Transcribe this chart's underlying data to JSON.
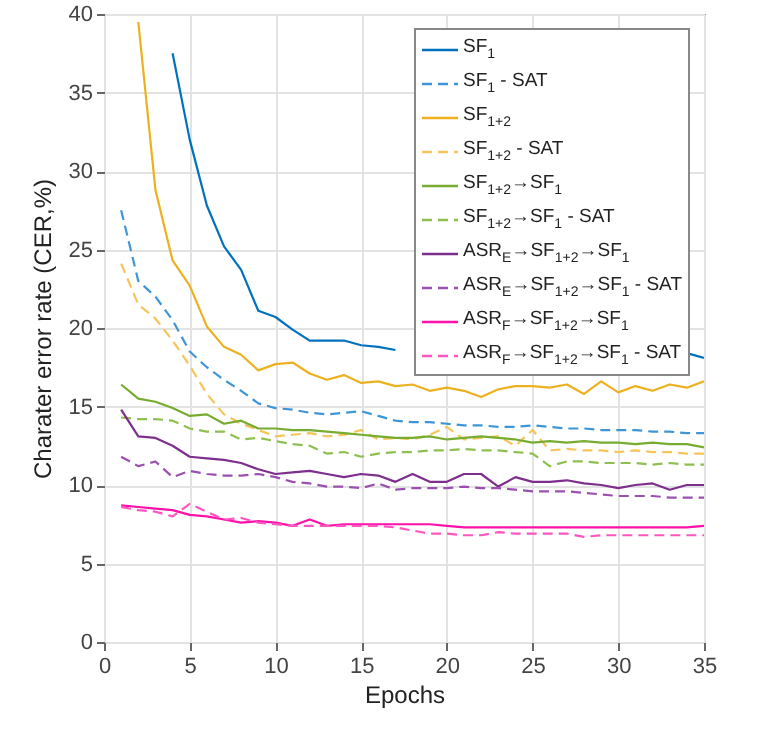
{
  "chart_data": {
    "type": "line",
    "xlabel": "Epochs",
    "ylabel": "Charater error rate (CER,%)",
    "x": [
      1,
      2,
      3,
      4,
      5,
      6,
      7,
      8,
      9,
      10,
      11,
      12,
      13,
      14,
      15,
      16,
      17,
      18,
      19,
      20,
      21,
      22,
      23,
      24,
      25,
      26,
      27,
      28,
      29,
      30,
      31,
      32,
      33,
      34,
      35
    ],
    "xlim": [
      0,
      35
    ],
    "xticks": [
      0,
      5,
      10,
      15,
      20,
      25,
      30,
      35
    ],
    "ylim": [
      0,
      40
    ],
    "yticks": [
      0,
      5,
      10,
      15,
      20,
      25,
      30,
      35,
      40
    ],
    "grid": true,
    "legend": "top right",
    "series": [
      {
        "name": "SF$_{1}$",
        "color": "#0072bd",
        "line_style": "solid",
        "values": [
          null,
          null,
          null,
          37.5,
          32,
          27.8,
          25.2,
          23.7,
          21.1,
          20.7,
          19.9,
          19.2,
          19.2,
          19.2,
          18.9,
          18.8,
          18.6,
          null,
          null,
          null,
          null,
          null,
          null,
          null,
          null,
          null,
          null,
          null,
          null,
          null,
          null,
          null,
          null,
          18.4,
          18.1
        ]
      },
      {
        "name": "SF$_{1}$ - SAT",
        "color": "#3f95d6",
        "line_style": "dashed",
        "values": [
          27.5,
          23,
          22,
          20.5,
          18.5,
          17.5,
          16.7,
          16.0,
          15.2,
          14.9,
          14.8,
          14.6,
          14.5,
          14.6,
          14.7,
          14.4,
          14.1,
          14.0,
          14.0,
          13.9,
          13.8,
          13.8,
          13.7,
          13.7,
          13.8,
          13.7,
          13.6,
          13.6,
          13.5,
          13.5,
          13.5,
          13.4,
          13.4,
          13.3,
          13.3
        ]
      },
      {
        "name": "SF$_{1+2}$",
        "color": "#edb120",
        "line_style": "solid",
        "values": [
          null,
          39.5,
          28.8,
          24.3,
          22.7,
          20.1,
          18.8,
          18.3,
          17.3,
          17.7,
          17.8,
          17.1,
          16.7,
          17.0,
          16.5,
          16.6,
          16.3,
          16.4,
          16.0,
          16.2,
          16.0,
          15.6,
          16.1,
          16.3,
          16.3,
          16.2,
          16.4,
          15.8,
          16.6,
          15.9,
          16.3,
          16.0,
          16.4,
          16.2,
          16.6
        ]
      },
      {
        "name": "SF$_{1+2}$ - SAT",
        "color": "#f5c55a",
        "line_style": "dashed",
        "values": [
          24.1,
          21.5,
          20.6,
          19.2,
          17.6,
          15.8,
          14.5,
          13.9,
          13.5,
          13.1,
          13.2,
          13.3,
          13.1,
          13.2,
          13.5,
          12.9,
          13.0,
          12.9,
          13.2,
          13.7,
          12.9,
          13.0,
          13.1,
          12.5,
          13.5,
          12.2,
          12.3,
          12.2,
          12.2,
          12.1,
          12.2,
          12.1,
          12.1,
          12.0,
          12.0
        ]
      },
      {
        "name": "SF$_{1+2}$→SF$_{1}$",
        "color": "#77ac30",
        "line_style": "solid",
        "values": [
          16.4,
          15.5,
          15.3,
          14.9,
          14.4,
          14.5,
          13.9,
          14.1,
          13.6,
          13.6,
          13.5,
          13.5,
          13.4,
          13.3,
          13.2,
          13.1,
          13.0,
          13.0,
          13.1,
          12.9,
          13.0,
          13.1,
          13.0,
          12.9,
          12.7,
          12.8,
          12.7,
          12.8,
          12.7,
          12.7,
          12.6,
          12.7,
          12.6,
          12.6,
          12.4
        ]
      },
      {
        "name": "SF$_{1+2}$→SF$_{1}$ - SAT",
        "color": "#8fbf50",
        "line_style": "dashed",
        "values": [
          14.3,
          14.2,
          14.2,
          14.1,
          13.6,
          13.4,
          13.4,
          12.9,
          13.0,
          12.8,
          12.6,
          12.5,
          12.0,
          12.1,
          11.8,
          12.0,
          12.1,
          12.1,
          12.2,
          12.2,
          12.3,
          12.2,
          12.2,
          12.1,
          12.0,
          11.2,
          11.5,
          11.5,
          11.4,
          11.4,
          11.4,
          11.3,
          11.4,
          11.3,
          11.3
        ]
      },
      {
        "name": "ASR$_{E}$→SF$_{1+2}$→SF$_{1}$",
        "color": "#7e2f8e",
        "line_style": "solid",
        "values": [
          14.8,
          13.1,
          13.0,
          12.5,
          11.8,
          11.7,
          11.6,
          11.4,
          11.0,
          10.7,
          10.8,
          10.9,
          10.7,
          10.5,
          10.7,
          10.6,
          10.2,
          10.7,
          10.2,
          10.2,
          10.7,
          10.7,
          9.9,
          10.5,
          10.2,
          10.2,
          10.3,
          10.1,
          10.0,
          9.8,
          10.0,
          10.1,
          9.7,
          10.0,
          10.0
        ]
      },
      {
        "name": "ASR$_{E}$→SF$_{1+2}$→SF$_{1}$ - SAT",
        "color": "#9b50b0",
        "line_style": "dashed",
        "values": [
          11.8,
          11.2,
          11.5,
          10.5,
          10.9,
          10.7,
          10.6,
          10.6,
          10.7,
          10.5,
          10.2,
          10.1,
          9.9,
          9.9,
          9.8,
          10.1,
          9.7,
          9.8,
          9.8,
          9.8,
          9.9,
          9.8,
          9.8,
          9.7,
          9.6,
          9.6,
          9.6,
          9.5,
          9.4,
          9.3,
          9.3,
          9.3,
          9.2,
          9.2,
          9.2
        ]
      },
      {
        "name": "ASR$_{F}$→SF$_{1+2}$→SF$_{1}$",
        "color": "#ff11aa",
        "line_style": "solid",
        "values": [
          8.7,
          8.6,
          8.5,
          8.4,
          8.1,
          8.0,
          7.8,
          7.6,
          7.7,
          7.6,
          7.4,
          7.8,
          7.4,
          7.5,
          7.5,
          7.5,
          7.5,
          7.5,
          7.5,
          7.4,
          7.3,
          7.3,
          7.3,
          7.3,
          7.3,
          7.3,
          7.3,
          7.3,
          7.3,
          7.3,
          7.3,
          7.3,
          7.3,
          7.3,
          7.4
        ]
      },
      {
        "name": "ASR$_{F}$→SF$_{1+2}$→SF$_{1}$ - SAT",
        "color": "#ff55c0",
        "line_style": "dashed",
        "values": [
          8.6,
          8.4,
          8.3,
          8.0,
          8.8,
          8.3,
          7.8,
          7.9,
          7.6,
          7.5,
          7.4,
          7.4,
          7.4,
          7.4,
          7.4,
          7.4,
          7.3,
          7.1,
          6.9,
          6.9,
          6.8,
          6.8,
          7.0,
          6.9,
          6.9,
          6.9,
          6.9,
          6.7,
          6.8,
          6.8,
          6.8,
          6.8,
          6.8,
          6.8,
          6.8
        ]
      }
    ]
  }
}
